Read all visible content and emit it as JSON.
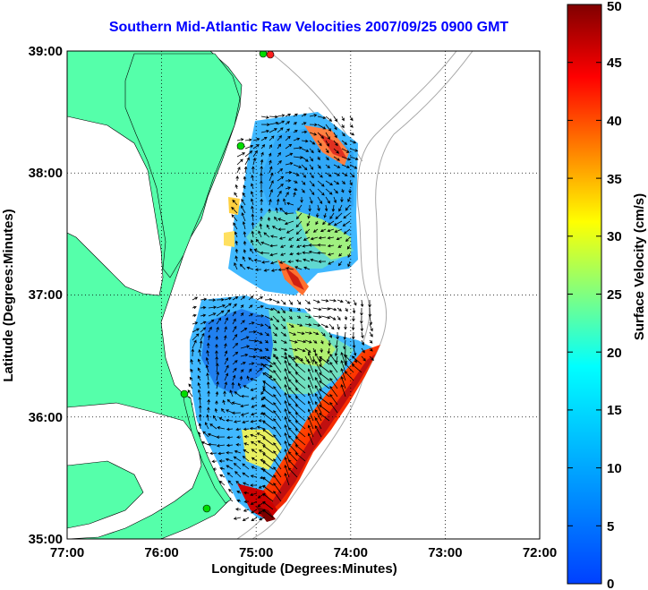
{
  "title": "Southern Mid-Atlantic Raw Velocities 2007/09/25 0900 GMT",
  "axes": {
    "xlabel": "Longitude (Degrees:Minutes)",
    "ylabel": "Latitude (Degrees:Minutes)",
    "xticks": [
      "77:00",
      "76:00",
      "75:00",
      "74:00",
      "73:00",
      "72:00"
    ],
    "yticks": [
      "39:00",
      "38:00",
      "37:00",
      "36:00",
      "35:00"
    ],
    "xlim": [
      -77,
      -72
    ],
    "ylim": [
      35,
      39
    ]
  },
  "colorbar": {
    "label": "Surface Velocity (cm/s)",
    "ticks": [
      "50",
      "45",
      "40",
      "35",
      "30",
      "25",
      "20",
      "15",
      "10",
      "5",
      "0"
    ],
    "range": [
      0,
      50
    ],
    "colormap": "jet"
  },
  "colors": {
    "land": "#55ffaa",
    "title": "#0000ff",
    "station": "#00dd00",
    "station_alt": "#ff2020",
    "contour": "#a0a0a0"
  }
}
